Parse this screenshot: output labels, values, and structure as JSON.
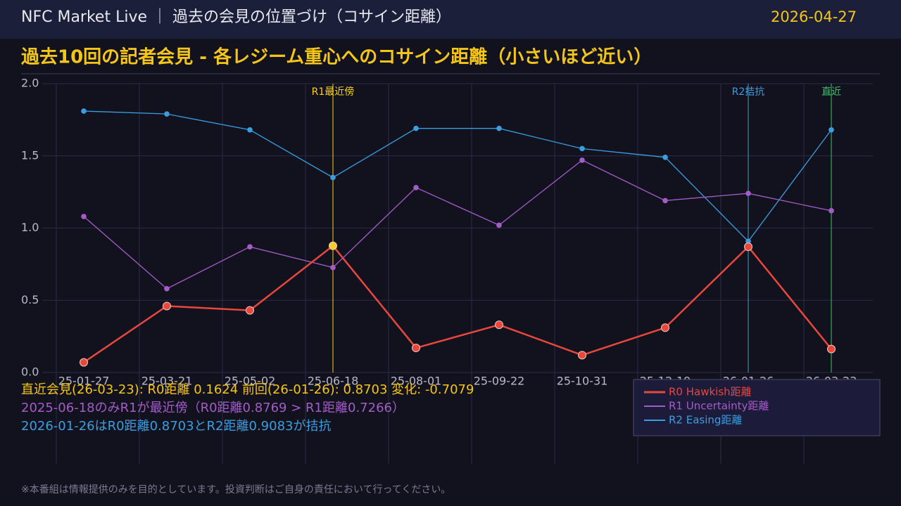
{
  "header": {
    "title": "NFC Market Live ｜ 過去の会見の位置づけ（コサイン距離）",
    "date": "2026-04-27"
  },
  "chart_data": {
    "type": "line",
    "title": "過去10回の記者会見 - 各レジーム重心へのコサイン距離（小さいほど近い）",
    "categories": [
      "25-01-27",
      "25-03-21",
      "25-05-02",
      "25-06-18",
      "25-08-01",
      "25-09-22",
      "25-10-31",
      "25-12-19",
      "26-01-26",
      "26-03-23"
    ],
    "series": [
      {
        "name": "R0 Hawkish距離",
        "color": "#e8473c",
        "values": [
          0.07,
          0.46,
          0.43,
          0.8769,
          0.17,
          0.33,
          0.12,
          0.31,
          0.8703,
          0.1624
        ],
        "point_colors": [
          "#e8473c",
          "#e8473c",
          "#e8473c",
          "#f5d020",
          "#e8473c",
          "#e8473c",
          "#e8473c",
          "#e8473c",
          "#e8473c",
          "#e8473c"
        ]
      },
      {
        "name": "R1 Uncertainty距離",
        "color": "#a45cc8",
        "values": [
          1.08,
          0.58,
          0.87,
          0.7266,
          1.28,
          1.02,
          1.47,
          1.19,
          1.24,
          1.12
        ]
      },
      {
        "name": "R2 Easing距離",
        "color": "#3a9ee0",
        "values": [
          1.81,
          1.79,
          1.68,
          1.35,
          1.69,
          1.69,
          1.55,
          1.49,
          0.9083,
          1.68
        ]
      }
    ],
    "ylim": [
      0,
      2
    ],
    "yticks": [
      {
        "value": 0,
        "label": "0.0"
      },
      0.5,
      {
        "value": 1,
        "label": "1.0"
      },
      1.5,
      {
        "value": 2,
        "label": "2.0"
      }
    ],
    "grid": true,
    "legend": "lower right",
    "annotations": [
      {
        "x": "25-06-18",
        "label": "R1最近傍",
        "color": "#f5d020"
      },
      {
        "x": "26-01-26",
        "label": "R2拮抗",
        "color": "#3a9ee0"
      },
      {
        "x": "26-03-23",
        "label": "直近",
        "color": "#3cc46a"
      }
    ]
  },
  "notes": [
    "直近会見(26-03-23): R0距離 0.1624  前回(26-01-26): 0.8703  変化: -0.7079",
    "2025-06-18のみR1が最近傍（R0距離0.8769 > R1距離0.7266）",
    "2026-01-26はR0距離0.8703とR2距離0.9083が拮抗"
  ],
  "footer": "※本番組は情報提供のみを目的としています。投資判断はご自身の責任において行ってください。"
}
